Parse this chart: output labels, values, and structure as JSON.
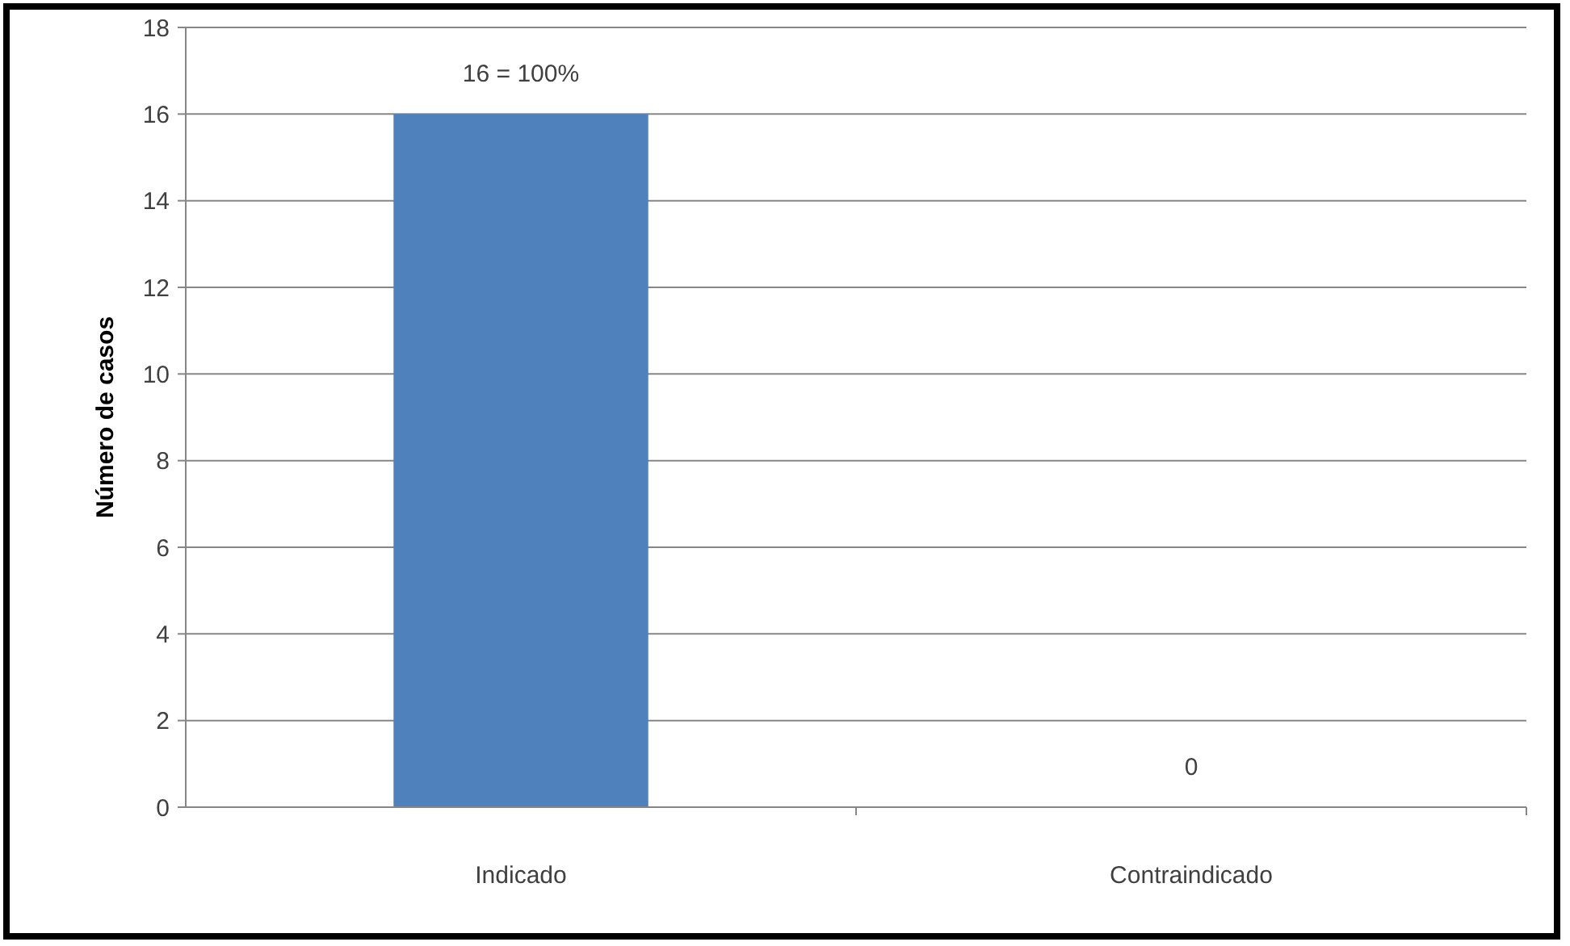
{
  "chart_data": {
    "type": "bar",
    "ylabel": "Número de casos",
    "categories": [
      "Indicado",
      "Contraindicado"
    ],
    "values": [
      16,
      0
    ],
    "value_labels": [
      "16 = 100%",
      "0"
    ],
    "color": "#4f81bd",
    "ylim": [
      0,
      18
    ],
    "yticks": [
      0,
      2,
      4,
      6,
      8,
      10,
      12,
      14,
      16,
      18
    ],
    "grid": "y"
  }
}
